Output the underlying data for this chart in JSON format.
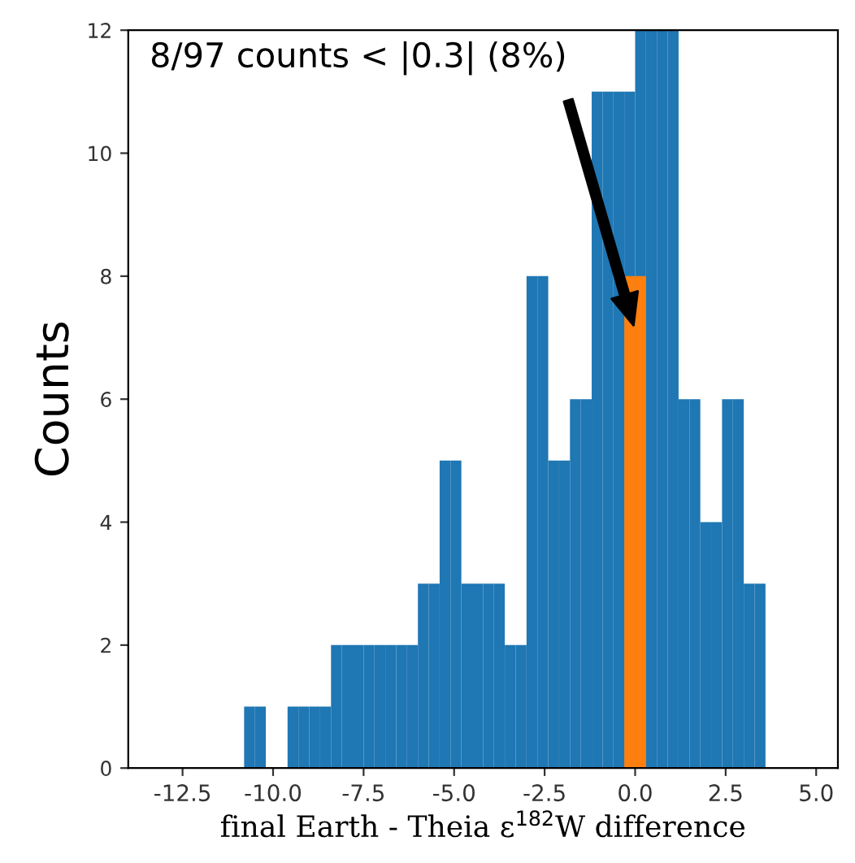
{
  "chart_data": {
    "type": "histogram",
    "xlabel": "final Earth - Theia ε$^{182}$W difference",
    "ylabel": "Counts",
    "bins": [
      -10.8,
      -10.5,
      -10.2,
      -9.9,
      -9.6,
      -9.3,
      -9.0,
      -8.7,
      -8.4,
      -8.1,
      -7.8,
      -7.5,
      -7.2,
      -6.9,
      -6.6,
      -6.3,
      -6.0,
      -5.7,
      -5.4,
      -5.1,
      -4.8,
      -4.5,
      -4.2,
      -3.9,
      -3.6,
      -3.3,
      -3.0,
      -2.7,
      -2.4,
      -2.1,
      -1.8,
      -1.5,
      -1.2,
      -0.9,
      -0.6,
      -0.3,
      0.0,
      0.3,
      0.6,
      0.9,
      1.2,
      1.5,
      1.8,
      2.1,
      2.4,
      2.7,
      3.0,
      3.3,
      3.6
    ],
    "series": [
      {
        "color": "#1f77b4",
        "values": [
          1,
          1,
          0,
          0,
          1,
          1,
          1,
          1,
          2,
          2,
          2,
          2,
          2,
          2,
          2,
          2,
          3,
          3,
          5,
          5,
          3,
          3,
          3,
          3,
          2,
          2,
          8,
          8,
          5,
          5,
          6,
          6,
          11,
          11,
          11,
          11,
          12,
          12,
          12,
          12,
          6,
          6,
          4,
          4,
          6,
          6,
          3,
          3
        ]
      },
      {
        "color": "#ff7f0e",
        "values": [
          null,
          null,
          null,
          null,
          null,
          null,
          null,
          null,
          null,
          null,
          null,
          null,
          null,
          null,
          null,
          null,
          null,
          null,
          null,
          null,
          null,
          null,
          null,
          null,
          null,
          null,
          null,
          null,
          null,
          null,
          null,
          null,
          null,
          null,
          null,
          8,
          8,
          null,
          null,
          null,
          null,
          null,
          null,
          null,
          null,
          null,
          null,
          null
        ]
      }
    ],
    "annotations": [
      "8/97 counts < |0.3| (8%)"
    ],
    "xlim": [
      -14.0,
      5.6
    ],
    "ylim": [
      0,
      12
    ],
    "xticks": [
      {
        "value": -12.5,
        "label": "-12.5"
      },
      {
        "value": -10.0,
        "label": "-10.0"
      },
      {
        "value": -7.5,
        "label": "-7.5"
      },
      {
        "value": -5.0,
        "label": "-5.0"
      },
      {
        "value": -2.5,
        "label": "-2.5"
      },
      {
        "value": 0.0,
        "label": "0.0"
      },
      {
        "value": 2.5,
        "label": "2.5"
      },
      {
        "value": 5.0,
        "label": "5.0"
      }
    ],
    "yticks": [
      0,
      2,
      4,
      6,
      8,
      10,
      12
    ],
    "grid": false,
    "legend": false
  }
}
